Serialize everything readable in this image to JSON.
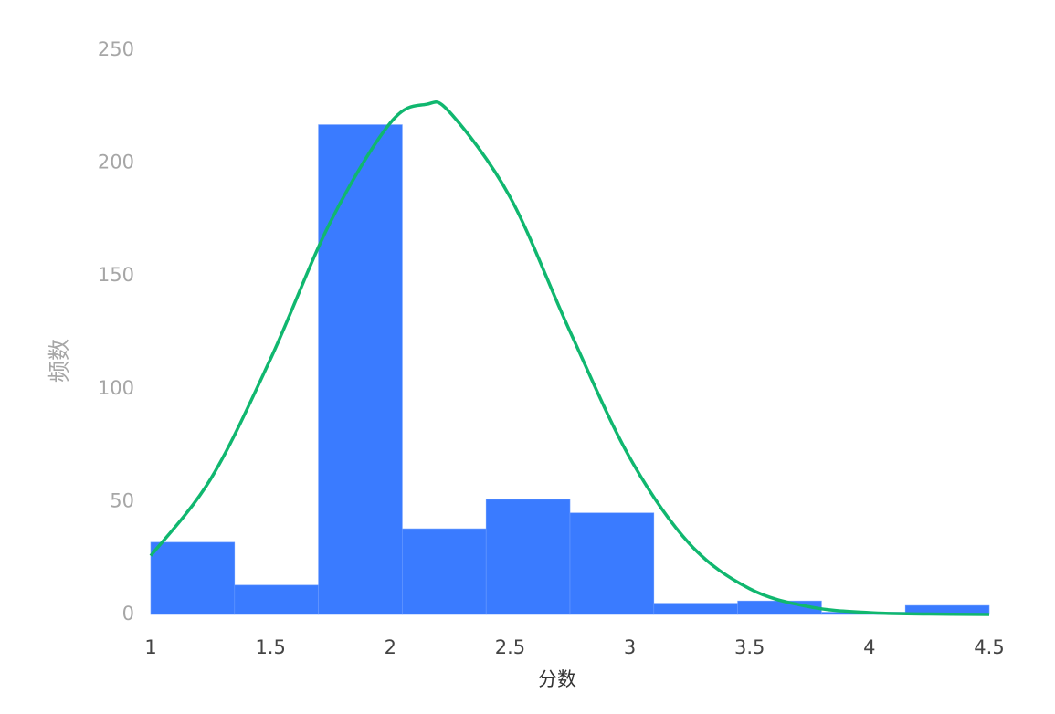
{
  "chart_data": {
    "type": "histogram",
    "x_label": "分数",
    "y_label": "频数",
    "bins": [
      1,
      1.35,
      1.7,
      2.05,
      2.4,
      2.75,
      3.1,
      3.45,
      3.8,
      4.15,
      4.5
    ],
    "values": [
      32,
      13,
      217,
      38,
      51,
      45,
      5,
      6,
      1,
      4
    ],
    "color": "#3a7bff",
    "curve": {
      "color": "#10b76f",
      "x": [
        1,
        1.25,
        1.5,
        1.75,
        2,
        2.15,
        2.25,
        2.5,
        2.75,
        3,
        3.25,
        3.5,
        3.75,
        4,
        4.25,
        4.5
      ],
      "values": [
        26,
        60,
        113.2,
        173.9,
        217.8,
        226,
        222.3,
        184.9,
        125.4,
        69.4,
        31.2,
        11.4,
        3.4,
        0.8,
        0.2,
        0
      ]
    },
    "xlim": [
      1,
      4.5
    ],
    "ylim": [
      0,
      250
    ],
    "xticks": [
      1,
      1.5,
      2,
      2.5,
      3,
      3.5,
      4,
      4.5
    ],
    "yticks": [
      0,
      50,
      100,
      150,
      200,
      250
    ]
  }
}
